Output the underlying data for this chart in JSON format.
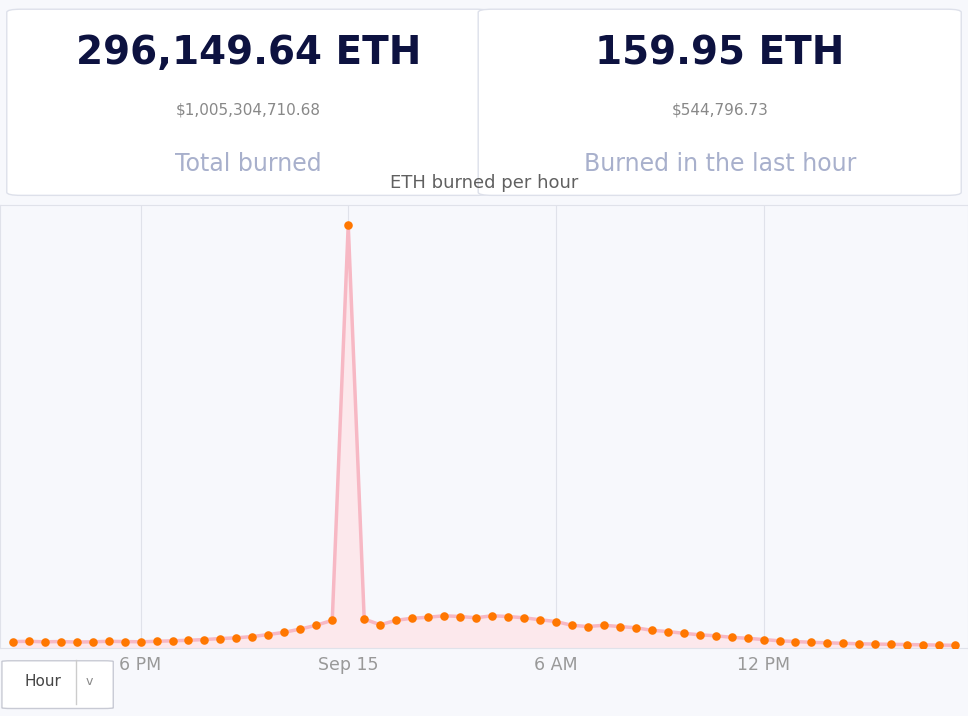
{
  "total_eth": "296,149.64 ETH",
  "total_usd": "$1,005,304,710.68",
  "total_label": "Total burned",
  "hour_eth": "159.95 ETH",
  "hour_usd": "$544,796.73",
  "hour_label": "Burned in the last hour",
  "chart_title": "ETH burned per hour",
  "x_labels": [
    "6 PM",
    "Sep 15",
    "6 AM",
    "12 PM"
  ],
  "background_color": "#f7f8fc",
  "card_background": "#ffffff",
  "card_border_color": "#dde0ea",
  "chart_area_color": "#f7f8fc",
  "line_color": "#f7b8c4",
  "fill_color": "#fce8ec",
  "dot_color": "#ff7700",
  "title_color": "#606060",
  "main_value_color": "#0d1240",
  "sub_value_color": "#888888",
  "label_color": "#a8b0cc",
  "xaxis_color": "#999999",
  "grid_color": "#e0e2ea",
  "y_values": [
    155,
    156,
    154,
    155,
    153,
    154,
    156,
    155,
    154,
    156,
    158,
    160,
    163,
    167,
    170,
    175,
    183,
    192,
    205,
    220,
    240,
    1820,
    245,
    222,
    240,
    248,
    252,
    258,
    255,
    250,
    258,
    255,
    250,
    242,
    235,
    220,
    215,
    220,
    215,
    210,
    200,
    195,
    188,
    182,
    178,
    172,
    168,
    163,
    158,
    155,
    152,
    150,
    148,
    146,
    145,
    144,
    143,
    142,
    141,
    140
  ],
  "peak_index": 21,
  "ylim_max": 1900,
  "x_tick_indices": [
    8,
    21,
    34,
    47
  ],
  "hour_button_text": "Hour",
  "divider_color": "#cccccc"
}
